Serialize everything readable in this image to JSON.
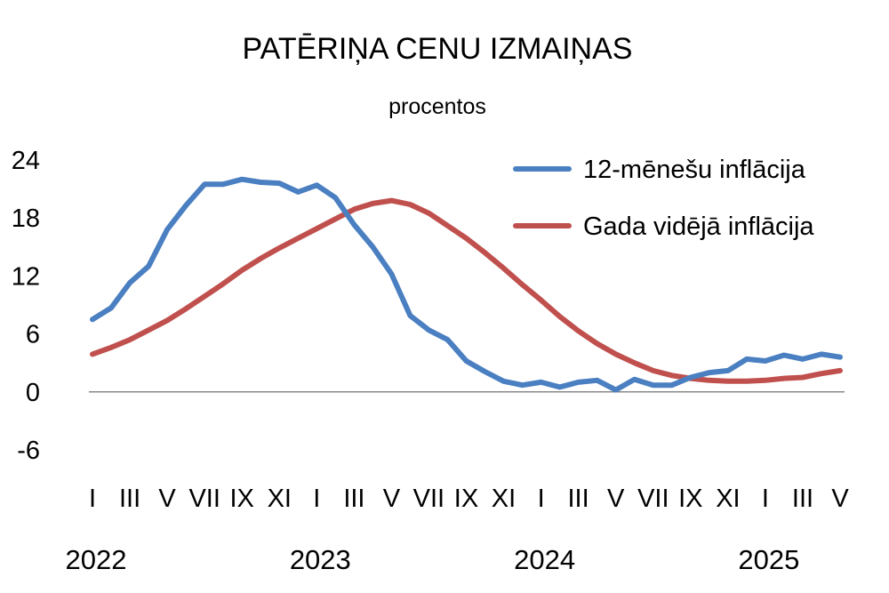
{
  "chart_data": {
    "type": "line",
    "title": "PATĒRIŅA CENU IZMAIŅAS",
    "subtitle": "procentos",
    "ylim": [
      -6,
      24
    ],
    "yticks": [
      "24",
      "18",
      "12",
      "6",
      "0",
      "-6"
    ],
    "x_month_labels": [
      "I",
      "III",
      "V",
      "VII",
      "IX",
      "XI",
      "I",
      "III",
      "V",
      "VII",
      "IX",
      "XI",
      "I",
      "III",
      "V",
      "VII",
      "IX",
      "XI",
      "I",
      "III",
      "V"
    ],
    "x_year_labels": [
      "2022",
      "2023",
      "2024",
      "2025"
    ],
    "legend_position": "top-right",
    "grid": false,
    "series": [
      {
        "name": "12-mēnešu inflācija",
        "color": "#4a7fc1",
        "values": [
          7.5,
          8.7,
          11.3,
          13.0,
          16.8,
          19.3,
          21.5,
          21.5,
          22.0,
          21.7,
          21.6,
          20.7,
          21.4,
          20.1,
          17.3,
          15.0,
          12.2,
          7.9,
          6.4,
          5.4,
          3.2,
          2.1,
          1.1,
          0.7,
          1.0,
          0.5,
          1.0,
          1.2,
          0.2,
          1.3,
          0.7,
          0.7,
          1.5,
          2.0,
          2.2,
          3.4,
          3.2,
          3.8,
          3.4,
          3.9,
          3.6
        ]
      },
      {
        "name": "Gada vidējā inflācija",
        "color": "#c0504d",
        "values": [
          3.9,
          4.6,
          5.4,
          6.4,
          7.4,
          8.6,
          9.9,
          11.2,
          12.6,
          13.8,
          14.9,
          15.9,
          16.9,
          17.9,
          18.9,
          19.5,
          19.8,
          19.4,
          18.5,
          17.2,
          15.9,
          14.4,
          12.8,
          11.1,
          9.5,
          7.8,
          6.3,
          5.0,
          3.9,
          3.0,
          2.2,
          1.7,
          1.4,
          1.2,
          1.1,
          1.1,
          1.2,
          1.4,
          1.5,
          1.9,
          2.2
        ]
      }
    ]
  }
}
